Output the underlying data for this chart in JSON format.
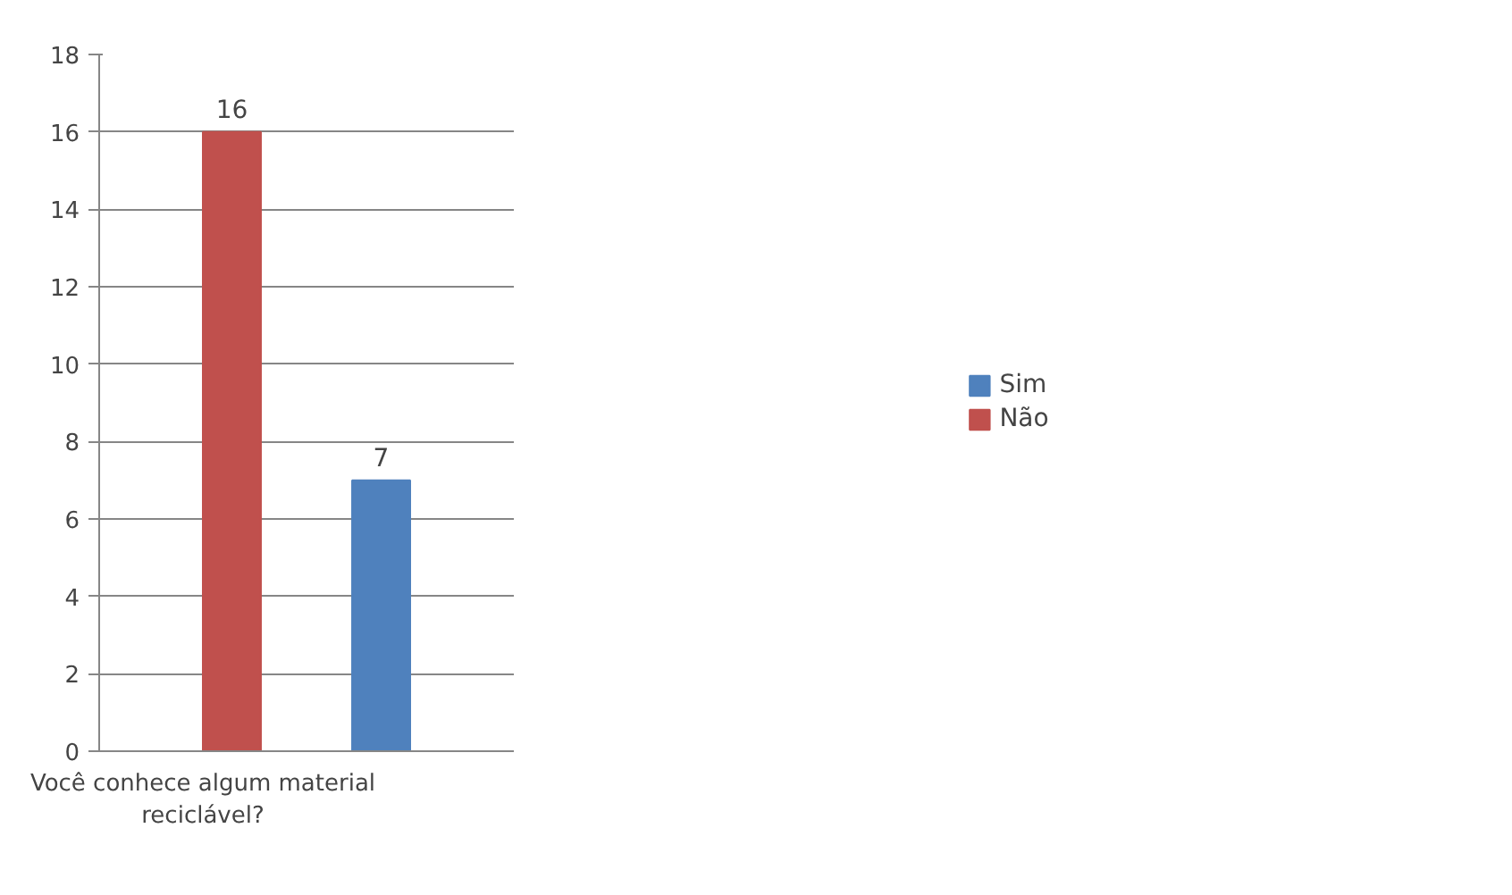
{
  "chart_data": {
    "type": "bar",
    "categories": [
      "Você conhece algum material reciclável?",
      null
    ],
    "series": [
      {
        "name": "Sim",
        "color": "#4f81bd",
        "values": [
          null,
          7
        ]
      },
      {
        "name": "Não",
        "color": "#c0504d",
        "values": [
          16,
          null
        ]
      }
    ],
    "ylim": [
      0,
      18
    ],
    "yticks": [
      0,
      2,
      4,
      6,
      8,
      10,
      12,
      14,
      16,
      18
    ],
    "grid": "y",
    "legend": "right",
    "data_labels": true
  }
}
